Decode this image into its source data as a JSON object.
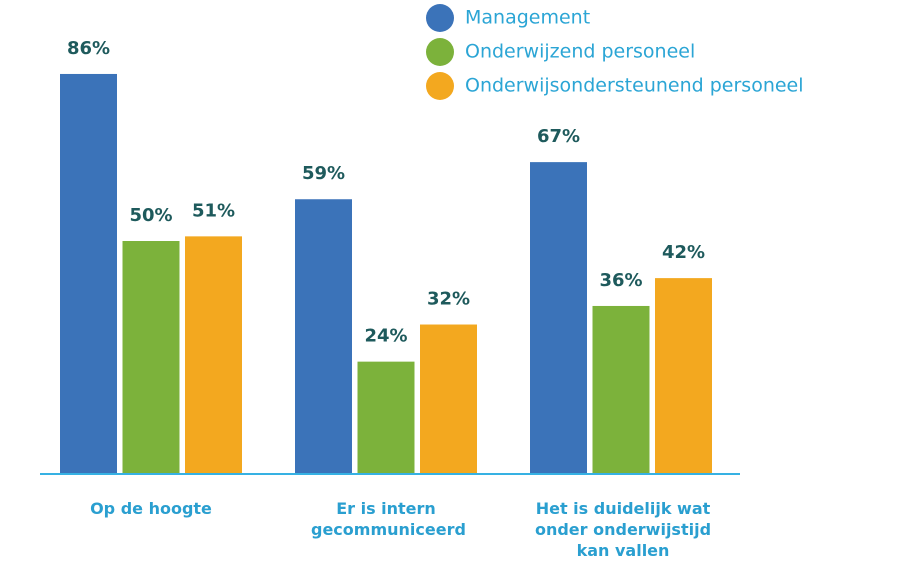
{
  "chart_data": {
    "type": "bar",
    "categories": [
      "Op de hoogte",
      "Er is intern gecommuniceerd",
      "Het is duidelijk wat onder onderwijstijd kan vallen"
    ],
    "series": [
      {
        "name": "Management",
        "color": "#3b73b9",
        "values": [
          86,
          59,
          67
        ],
        "value_labels": [
          "86%",
          "59%",
          "67%"
        ]
      },
      {
        "name": "Onderwijzend personeel",
        "color": "#7cb23b",
        "values": [
          50,
          24,
          36
        ],
        "value_labels": [
          "50%",
          "24%",
          "36%"
        ]
      },
      {
        "name": "Onderwijsondersteunend personeel",
        "color": "#f3a81f",
        "values": [
          51,
          32,
          42
        ],
        "value_labels": [
          "51%",
          "32%",
          "42%"
        ]
      }
    ]
  }
}
